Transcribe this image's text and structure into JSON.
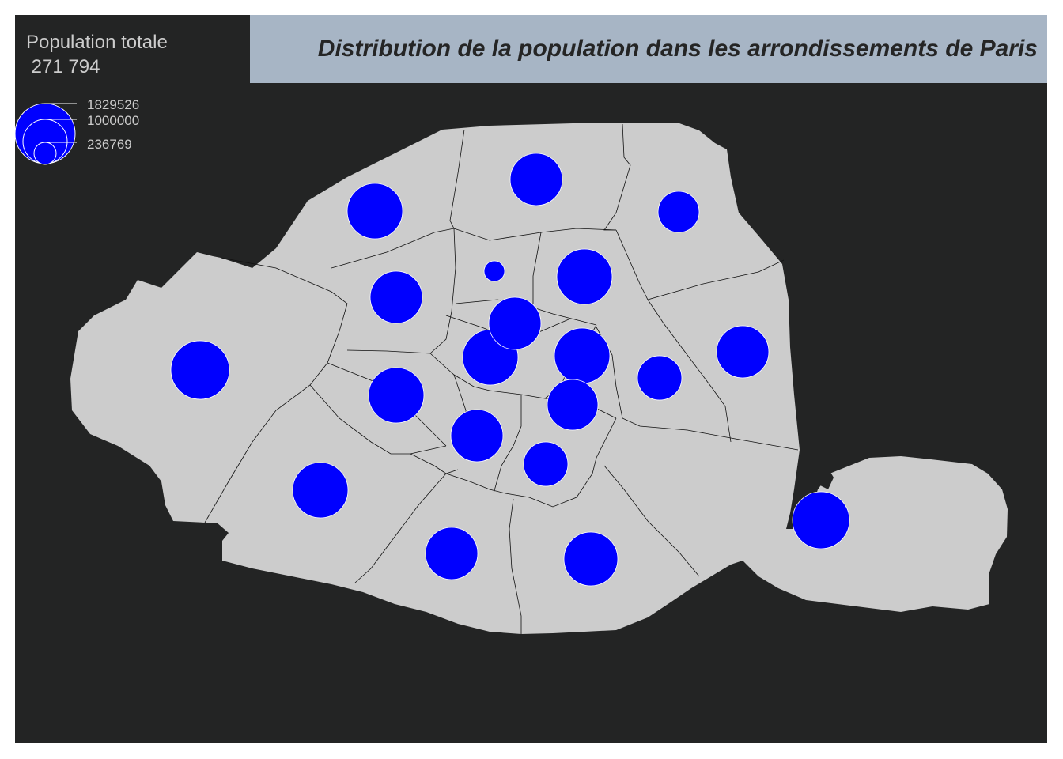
{
  "map": {
    "title": "Distribution de la population dans les arrondissements de Paris",
    "legend": {
      "title": "Population totale",
      "total": "271 794",
      "values": [
        "1829526",
        "1000000",
        "236769"
      ]
    },
    "symbol_color": "#0000ff",
    "land_color": "#cccccc",
    "background_color": "#232424",
    "title_band_color": "#a7b5c5"
  },
  "chart_data": {
    "type": "proportional-symbol-map",
    "title": "Distribution de la population dans les arrondissements de Paris",
    "legend_title": "Population totale",
    "legend_values": [
      1829526,
      1000000,
      236769
    ]
  }
}
